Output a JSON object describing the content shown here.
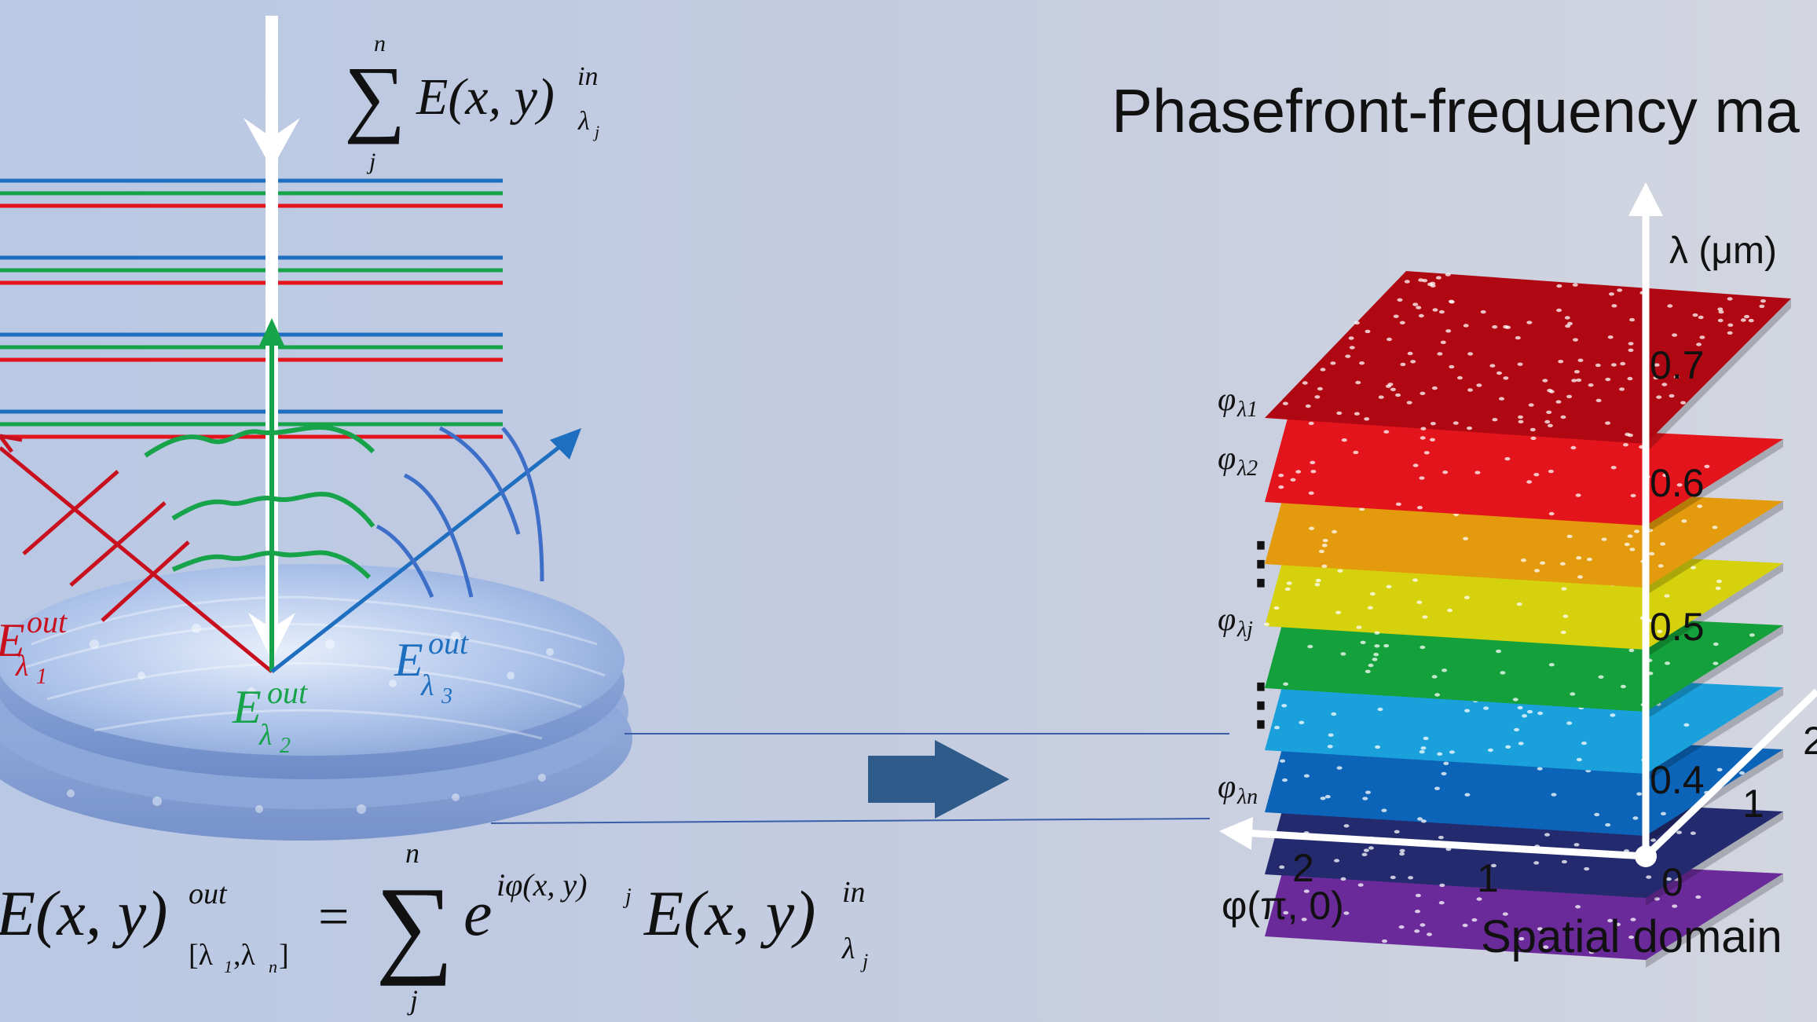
{
  "title": "Phasefront-frequency ma",
  "input_formula": {
    "sum_top": "n",
    "sum_bottom": "j",
    "body": "E(x, y)",
    "sup": "in",
    "sub": "λ",
    "sub_sub": "j"
  },
  "output_formula": {
    "lhs": "E(x, y)",
    "lhs_sup": "out",
    "lhs_sub": "[λ",
    "lhs_sub_1": "1",
    "lhs_sub_sep": ",λ",
    "lhs_sub_n": "n",
    "lhs_sub_close": "]",
    "eq": "=",
    "sum_top": "n",
    "sum_bottom": "j",
    "exp_base": "e",
    "exp": "iφ(x, y)",
    "exp_sub": "j",
    "rhs": "E(x, y)",
    "rhs_sup": "in",
    "rhs_sub": "λ",
    "rhs_sub_sub": "j"
  },
  "beam_labels": [
    {
      "base": "E",
      "sup": "out",
      "sub": "λ",
      "sub_sub": "1",
      "color": "#c8101e"
    },
    {
      "base": "E",
      "sup": "out",
      "sub": "λ",
      "sub_sub": "2",
      "color": "#17a34a"
    },
    {
      "base": "E",
      "sup": "out",
      "sub": "λ",
      "sub_sub": "3",
      "color": "#1f6fc0"
    }
  ],
  "axes": {
    "z_label": "λ (μm)",
    "z_ticks": [
      "0.7",
      "0.6",
      "0.5",
      "0.4"
    ],
    "x_label": "φ(π, 0)",
    "x_ticks": [
      "2",
      "1",
      "0"
    ],
    "y_ticks": [
      "1",
      "2"
    ],
    "bottom_label": "Spatial domain"
  },
  "layers": [
    {
      "label": "φ",
      "sub": "λ1",
      "color": "#b00812"
    },
    {
      "label": "φ",
      "sub": "λ2",
      "color": "#e3141b"
    },
    {
      "label": "",
      "sub": "",
      "color": "#e39a0c"
    },
    {
      "label": "",
      "sub": "",
      "color": "#d6d10d"
    },
    {
      "label": "φ",
      "sub": "λj",
      "color": "#14a03a"
    },
    {
      "label": "",
      "sub": "",
      "color": "#1aa1dc"
    },
    {
      "label": "",
      "sub": "",
      "color": "#0c64b8"
    },
    {
      "label": "",
      "sub": "",
      "color": "#242a6e"
    },
    {
      "label": "φ",
      "sub": "λn",
      "color": "#6a2a9a"
    }
  ],
  "ellipsis": "⋮",
  "colors": {
    "red": "#c8101e",
    "green": "#17a34a",
    "blue": "#1f6fc0",
    "arrow": "#2e5b8a"
  }
}
